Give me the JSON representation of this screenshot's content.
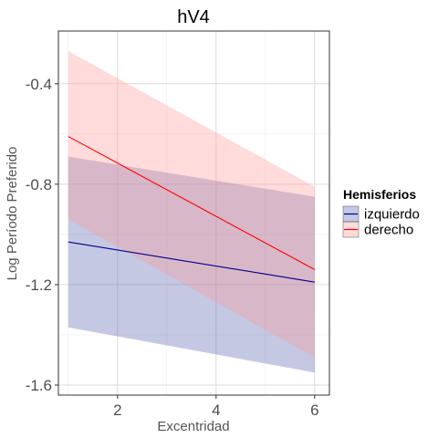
{
  "chart_data": {
    "type": "line",
    "title": "hV4",
    "xlabel": "Excentridad",
    "ylabel": "Log Período Preferido",
    "xlim": [
      0.8,
      6.3
    ],
    "ylim": [
      -1.64,
      -0.19
    ],
    "x_ticks": [
      2,
      4,
      6
    ],
    "x_tick_labels": [
      "2",
      "4",
      "6"
    ],
    "y_ticks": [
      -0.4,
      -0.8,
      -1.2,
      -1.6
    ],
    "y_tick_labels": [
      "-0.4",
      "-0.8",
      "-1.2",
      "-1.6"
    ],
    "grid": true,
    "legend": {
      "title": "Hemisferios",
      "placement": "right"
    },
    "series": [
      {
        "name": "izquierdo",
        "color": "#00008b",
        "band_color": "#5560b0",
        "x": [
          1,
          6
        ],
        "y": [
          -1.03,
          -1.19
        ],
        "lower": [
          -1.37,
          -1.55
        ],
        "upper": [
          -0.69,
          -0.85
        ]
      },
      {
        "name": "derecho",
        "color": "#ff0000",
        "band_color": "#ff9999",
        "x": [
          1,
          6
        ],
        "y": [
          -0.61,
          -1.14
        ],
        "lower": [
          -0.94,
          -1.49
        ],
        "upper": [
          -0.27,
          -0.81
        ]
      }
    ]
  }
}
